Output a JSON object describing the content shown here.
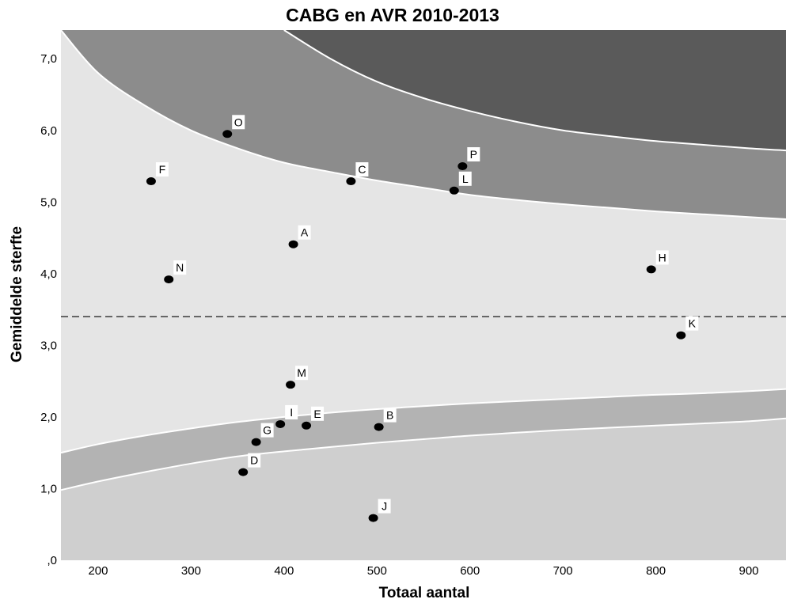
{
  "chart_data": {
    "type": "scatter",
    "title": "CABG en AVR 2010-2013",
    "xlabel": "Totaal aantal",
    "ylabel": "Gemiddelde sterfte",
    "xlim": [
      160,
      940
    ],
    "ylim": [
      0,
      7.4
    ],
    "x_ticks": [
      {
        "value": 200,
        "label": "200"
      },
      {
        "value": 300,
        "label": "300"
      },
      {
        "value": 400,
        "label": "400"
      },
      {
        "value": 500,
        "label": "500"
      },
      {
        "value": 600,
        "label": "600"
      },
      {
        "value": 700,
        "label": "700"
      },
      {
        "value": 800,
        "label": "800"
      },
      {
        "value": 900,
        "label": "900"
      }
    ],
    "y_ticks": [
      {
        "value": 0,
        "label": ",0"
      },
      {
        "value": 1,
        "label": "1,0"
      },
      {
        "value": 2,
        "label": "2,0"
      },
      {
        "value": 3,
        "label": "3,0"
      },
      {
        "value": 4,
        "label": "4,0"
      },
      {
        "value": 5,
        "label": "5,0"
      },
      {
        "value": 6,
        "label": "6,0"
      },
      {
        "value": 7,
        "label": "7,0"
      }
    ],
    "mean_line": 3.4,
    "control_limits": {
      "x": [
        160,
        200,
        250,
        300,
        350,
        400,
        450,
        500,
        550,
        600,
        650,
        700,
        750,
        800,
        850,
        900,
        940
      ],
      "upper_inner": [
        7.4,
        6.8,
        6.35,
        6.0,
        5.75,
        5.55,
        5.42,
        5.3,
        5.2,
        5.1,
        5.03,
        4.97,
        4.92,
        4.87,
        4.83,
        4.79,
        4.76
      ],
      "upper_outer": [
        null,
        null,
        null,
        null,
        null,
        7.4,
        7.0,
        6.68,
        6.45,
        6.27,
        6.12,
        6.0,
        5.92,
        5.85,
        5.8,
        5.75,
        5.72
      ],
      "lower_inner": [
        1.5,
        1.62,
        1.74,
        1.84,
        1.93,
        2.0,
        2.06,
        2.11,
        2.15,
        2.19,
        2.22,
        2.25,
        2.28,
        2.31,
        2.33,
        2.36,
        2.39
      ],
      "lower_outer": [
        0.98,
        1.1,
        1.23,
        1.35,
        1.45,
        1.52,
        1.58,
        1.64,
        1.69,
        1.74,
        1.78,
        1.82,
        1.85,
        1.88,
        1.91,
        1.94,
        1.98
      ]
    },
    "zone_colors": {
      "far_above": "#5a5a5a",
      "above": "#8c8c8c",
      "within": "#e5e5e5",
      "below": "#b3b3b3",
      "far_below": "#cfcfcf",
      "limit_line": "#ffffff",
      "mean_line": "#3a3a3a",
      "point": "#000000"
    },
    "points": [
      {
        "label": "A",
        "x": 410,
        "y": 4.41
      },
      {
        "label": "B",
        "x": 502,
        "y": 1.86
      },
      {
        "label": "C",
        "x": 472,
        "y": 5.29
      },
      {
        "label": "D",
        "x": 356,
        "y": 1.23
      },
      {
        "label": "E",
        "x": 424,
        "y": 1.88
      },
      {
        "label": "F",
        "x": 257,
        "y": 5.29
      },
      {
        "label": "G",
        "x": 370,
        "y": 1.65
      },
      {
        "label": "H",
        "x": 795,
        "y": 4.06
      },
      {
        "label": "I",
        "x": 396,
        "y": 1.9
      },
      {
        "label": "J",
        "x": 496,
        "y": 0.59
      },
      {
        "label": "K",
        "x": 827,
        "y": 3.14
      },
      {
        "label": "L",
        "x": 583,
        "y": 5.16
      },
      {
        "label": "M",
        "x": 407,
        "y": 2.45
      },
      {
        "label": "N",
        "x": 276,
        "y": 3.92
      },
      {
        "label": "O",
        "x": 339,
        "y": 5.95
      },
      {
        "label": "P",
        "x": 592,
        "y": 5.5
      }
    ]
  }
}
